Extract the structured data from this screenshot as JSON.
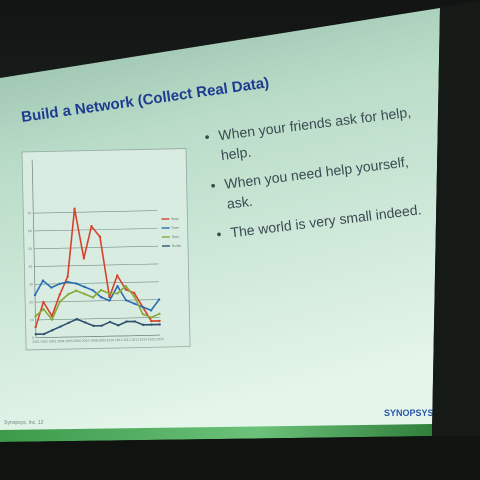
{
  "slide": {
    "title": "Build a Network (Collect Real Data)",
    "bullets": [
      {
        "lines": [
          "When your friends ask for help,",
          "help."
        ]
      },
      {
        "lines": [
          "When you need help yourself,",
          "ask."
        ]
      },
      {
        "lines": [
          "The world is very small indeed."
        ]
      }
    ],
    "footer": "Synopsys, Inc. 12",
    "logo": "SYNOPSYS",
    "colors": {
      "title": "#1d3c8f",
      "bullet_text": "#3b4a52",
      "slide_top": "#9fc6b2",
      "slide_bottom": "#dff2e6",
      "strip": "#2a8a3a"
    }
  },
  "chart_data": {
    "type": "line",
    "title": "",
    "xlabel": "",
    "ylabel": "",
    "x": [
      "2001",
      "2002",
      "2003",
      "2004",
      "2005",
      "2006",
      "2007",
      "2008",
      "2009",
      "2010",
      "2011",
      "2012",
      "2013",
      "2014",
      "2015",
      "2016"
    ],
    "ylim": [
      0,
      100
    ],
    "yticks": [
      0,
      10,
      20,
      30,
      40,
      50,
      60,
      70
    ],
    "grid": true,
    "legend": "right",
    "series": [
      {
        "name": "Bugs",
        "color": "#d4432a",
        "values": [
          6,
          20,
          12,
          24,
          34,
          72,
          44,
          62,
          56,
          22,
          34,
          26,
          24,
          16,
          8,
          8
        ]
      },
      {
        "name": "Fixes",
        "color": "#2a6db0",
        "values": [
          24,
          32,
          28,
          30,
          31,
          30,
          28,
          26,
          22,
          20,
          28,
          20,
          18,
          16,
          14,
          20
        ]
      },
      {
        "name": "Tests",
        "color": "#8aa83a",
        "values": [
          12,
          16,
          10,
          20,
          24,
          26,
          24,
          22,
          26,
          24,
          24,
          28,
          22,
          12,
          10,
          12
        ]
      },
      {
        "name": "Builds",
        "color": "#2f4f6f",
        "values": [
          2,
          2,
          4,
          6,
          8,
          10,
          8,
          6,
          6,
          8,
          6,
          8,
          8,
          6,
          6,
          6
        ]
      }
    ]
  }
}
